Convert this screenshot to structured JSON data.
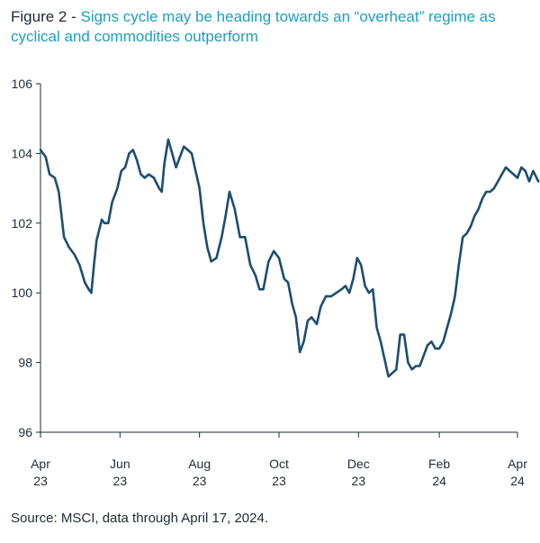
{
  "figure_label": "Figure 2 - ",
  "figure_title": "Signs cycle may be heading towards an “overheat” regime as cyclical and commodities outperform",
  "source": "Source: MSCI, data through April 17, 2024.",
  "colors": {
    "line": "#1d4e6e",
    "accent": "#1aa0bf",
    "axis": "#1f2a36"
  },
  "chart_data": {
    "type": "line",
    "title": "Signs cycle may be heading towards an “overheat” regime as cyclical and commodities outperform",
    "xlabel": "",
    "ylabel": "",
    "ylim": [
      96,
      106
    ],
    "yticks": [
      96,
      98,
      100,
      102,
      104,
      106
    ],
    "xticks": [
      {
        "label_month": "Apr",
        "label_year": "23",
        "date": "2023-04-01"
      },
      {
        "label_month": "Jun",
        "label_year": "23",
        "date": "2023-06-01"
      },
      {
        "label_month": "Aug",
        "label_year": "23",
        "date": "2023-08-01"
      },
      {
        "label_month": "Oct",
        "label_year": "23",
        "date": "2023-10-01"
      },
      {
        "label_month": "Dec",
        "label_year": "23",
        "date": "2023-12-01"
      },
      {
        "label_month": "Feb",
        "label_year": "24",
        "date": "2024-02-01"
      },
      {
        "label_month": "Apr",
        "label_year": "24",
        "date": "2024-04-01"
      }
    ],
    "grid": false,
    "series": [
      {
        "x": [
          "2023-04-01",
          "2023-04-05",
          "2023-04-08",
          "2023-04-12",
          "2023-04-15",
          "2023-04-19",
          "2023-04-23",
          "2023-04-27",
          "2023-05-01",
          "2023-05-05",
          "2023-05-08",
          "2023-05-10",
          "2023-05-12",
          "2023-05-14",
          "2023-05-16",
          "2023-05-18",
          "2023-05-20",
          "2023-05-23",
          "2023-05-26",
          "2023-05-30",
          "2023-06-02",
          "2023-06-05",
          "2023-06-08",
          "2023-06-11",
          "2023-06-14",
          "2023-06-17",
          "2023-06-20",
          "2023-06-23",
          "2023-06-27",
          "2023-07-01",
          "2023-07-03",
          "2023-07-05",
          "2023-07-08",
          "2023-07-11",
          "2023-07-14",
          "2023-07-17",
          "2023-07-20",
          "2023-07-23",
          "2023-07-26",
          "2023-07-29",
          "2023-08-01",
          "2023-08-04",
          "2023-08-07",
          "2023-08-10",
          "2023-08-14",
          "2023-08-18",
          "2023-08-21",
          "2023-08-24",
          "2023-08-28",
          "2023-09-01",
          "2023-09-05",
          "2023-09-09",
          "2023-09-13",
          "2023-09-16",
          "2023-09-19",
          "2023-09-23",
          "2023-09-27",
          "2023-10-01",
          "2023-10-05",
          "2023-10-08",
          "2023-10-11",
          "2023-10-14",
          "2023-10-17",
          "2023-10-20",
          "2023-10-23",
          "2023-10-26",
          "2023-10-30",
          "2023-11-02",
          "2023-11-06",
          "2023-11-10",
          "2023-11-14",
          "2023-11-18",
          "2023-11-21",
          "2023-11-24",
          "2023-11-27",
          "2023-11-30",
          "2023-12-03",
          "2023-12-06",
          "2023-12-09",
          "2023-12-12",
          "2023-12-15",
          "2023-12-18",
          "2023-12-21",
          "2023-12-24",
          "2023-12-27",
          "2023-12-30",
          "2024-01-02",
          "2024-01-05",
          "2024-01-08",
          "2024-01-11",
          "2024-01-14",
          "2024-01-17",
          "2024-01-20",
          "2024-01-23",
          "2024-01-26",
          "2024-01-29",
          "2024-02-01",
          "2024-02-04",
          "2024-02-07",
          "2024-02-10",
          "2024-02-13",
          "2024-02-16",
          "2024-02-19",
          "2024-02-22",
          "2024-02-25",
          "2024-02-28",
          "2024-03-02",
          "2024-03-05",
          "2024-03-08",
          "2024-03-11",
          "2024-03-14",
          "2024-03-17",
          "2024-03-20",
          "2024-03-23",
          "2024-03-26",
          "2024-03-29",
          "2024-04-01",
          "2024-04-04",
          "2024-04-07",
          "2024-04-10",
          "2024-04-13",
          "2024-04-17"
        ],
        "values": [
          104.1,
          103.9,
          103.4,
          103.3,
          102.9,
          101.6,
          101.3,
          101.1,
          100.8,
          100.3,
          100.1,
          100.0,
          100.8,
          101.5,
          101.8,
          102.1,
          102.0,
          102.0,
          102.6,
          103.0,
          103.5,
          103.6,
          104.0,
          104.1,
          103.8,
          103.4,
          103.3,
          103.4,
          103.3,
          103.0,
          102.9,
          103.7,
          104.4,
          104.0,
          103.6,
          103.9,
          104.2,
          104.1,
          104.0,
          103.5,
          103.0,
          102.0,
          101.3,
          100.9,
          101.0,
          101.6,
          102.2,
          102.9,
          102.4,
          101.6,
          101.6,
          100.8,
          100.5,
          100.1,
          100.1,
          100.9,
          101.2,
          101.0,
          100.4,
          100.3,
          99.7,
          99.3,
          98.3,
          98.6,
          99.2,
          99.3,
          99.1,
          99.6,
          99.9,
          99.9,
          100.0,
          100.1,
          100.2,
          100.0,
          100.4,
          101.0,
          100.8,
          100.2,
          100.0,
          100.1,
          99.0,
          98.6,
          98.1,
          97.6,
          97.7,
          97.8,
          98.8,
          98.8,
          98.0,
          97.8,
          97.9,
          97.9,
          98.2,
          98.5,
          98.6,
          98.4,
          98.4,
          98.6,
          99.0,
          99.4,
          99.9,
          100.8,
          101.6,
          101.7,
          101.9,
          102.2,
          102.4,
          102.7,
          102.9,
          102.9,
          103.0,
          103.2,
          103.4,
          103.6,
          103.5,
          103.4,
          103.3,
          103.6,
          103.5,
          103.2,
          103.5,
          103.2
        ]
      }
    ]
  }
}
